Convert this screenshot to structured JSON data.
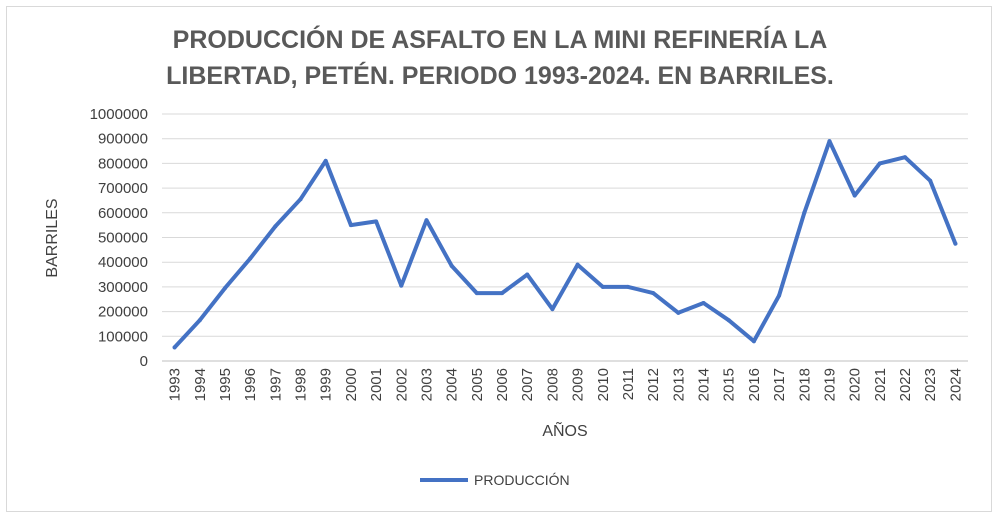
{
  "chart_data": {
    "type": "line",
    "title_line1": "PRODUCCIÓN DE ASFALTO EN LA MINI REFINERÍA LA",
    "title_line2": "LIBERTAD, PETÉN. PERIODO 1993-2024. EN BARRILES.",
    "xlabel": "AÑOS",
    "ylabel": "BARRILES",
    "ylim": [
      0,
      1000000
    ],
    "y_ticks": [
      "0",
      "100000",
      "200000",
      "300000",
      "400000",
      "500000",
      "600000",
      "700000",
      "800000",
      "900000",
      "1000000"
    ],
    "categories": [
      "1993",
      "1994",
      "1995",
      "1996",
      "1997",
      "1998",
      "1999",
      "2000",
      "2001",
      "2002",
      "2003",
      "2004",
      "2005",
      "2006",
      "2007",
      "2008",
      "2009",
      "2010",
      "2011",
      "2012",
      "2013",
      "2014",
      "2015",
      "2016",
      "2017",
      "2018",
      "2019",
      "2020",
      "2021",
      "2022",
      "2023",
      "2024"
    ],
    "series": [
      {
        "name": "PRODUCCIÓN",
        "color": "#4472c4",
        "values": [
          55000,
          165000,
          295000,
          415000,
          545000,
          655000,
          810000,
          550000,
          565000,
          305000,
          570000,
          385000,
          275000,
          275000,
          350000,
          210000,
          390000,
          300000,
          300000,
          275000,
          195000,
          235000,
          165000,
          80000,
          265000,
          600000,
          890000,
          670000,
          800000,
          825000,
          730000,
          475000
        ]
      }
    ],
    "grid": true,
    "legend_position": "bottom"
  }
}
